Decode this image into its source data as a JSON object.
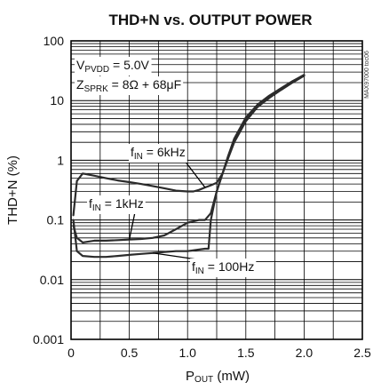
{
  "chart_data": {
    "type": "line",
    "title": "THD+N vs. OUTPUT POWER",
    "xlabel": {
      "main": "P",
      "sub": "OUT",
      "unit": " (mW)"
    },
    "ylabel": "THD+N (%)",
    "xlim": [
      0,
      2.5
    ],
    "ylim": [
      0.001,
      100
    ],
    "yscale": "log",
    "grid": true,
    "x_ticks": [
      "0",
      "0.5",
      "1.0",
      "1.5",
      "2.0",
      "2.5"
    ],
    "y_ticks": [
      "0.001",
      "0.01",
      "0.1",
      "1",
      "10",
      "100"
    ],
    "line_color": "#2b2b2b",
    "side_tag": "MAX97000 toc06",
    "conditions": [
      {
        "main": "V",
        "sub": "PVDD",
        "rest": " = 5.0V"
      },
      {
        "main": "Z",
        "sub": "SPRK",
        "rest": " = 8Ω + 68μF"
      }
    ],
    "series": [
      {
        "name": "fIN = 6kHz",
        "label": {
          "main": "f",
          "sub": "IN",
          "rest": " = 6kHz"
        },
        "x": [
          0.02,
          0.05,
          0.1,
          0.2,
          0.3,
          0.4,
          0.5,
          0.6,
          0.7,
          0.8,
          0.9,
          1.0,
          1.05,
          1.1,
          1.15,
          1.2,
          1.25,
          1.3,
          1.35,
          1.4,
          1.5,
          1.6,
          1.7,
          1.8,
          1.9,
          2.0
        ],
        "y": [
          0.12,
          0.45,
          0.6,
          0.55,
          0.5,
          0.46,
          0.43,
          0.4,
          0.37,
          0.34,
          0.31,
          0.3,
          0.3,
          0.32,
          0.35,
          0.38,
          0.42,
          0.6,
          1.2,
          2.2,
          5.0,
          8.5,
          12.0,
          16.0,
          21.0,
          27.0
        ]
      },
      {
        "name": "fIN = 1kHz",
        "label": {
          "main": "f",
          "sub": "IN",
          "rest": " = 1kHz"
        },
        "x": [
          0.02,
          0.05,
          0.1,
          0.2,
          0.3,
          0.4,
          0.5,
          0.6,
          0.7,
          0.8,
          0.9,
          1.0,
          1.1,
          1.15,
          1.2,
          1.25,
          1.3,
          1.35,
          1.4,
          1.5,
          1.6,
          1.7,
          1.8,
          1.9,
          2.0
        ],
        "y": [
          0.08,
          0.05,
          0.042,
          0.045,
          0.045,
          0.046,
          0.047,
          0.048,
          0.05,
          0.055,
          0.07,
          0.09,
          0.1,
          0.1,
          0.13,
          0.3,
          0.6,
          1.1,
          2.0,
          4.5,
          7.8,
          11.0,
          15.0,
          20.0,
          26.0
        ]
      },
      {
        "name": "fIN = 100Hz",
        "label": {
          "main": "f",
          "sub": "IN",
          "rest": " = 100Hz"
        },
        "x": [
          0.02,
          0.05,
          0.1,
          0.2,
          0.3,
          0.4,
          0.5,
          0.6,
          0.7,
          0.8,
          0.9,
          1.0,
          1.1,
          1.15,
          1.18,
          1.2,
          1.25,
          1.3,
          1.35,
          1.4,
          1.5,
          1.6,
          1.7,
          1.8,
          1.9,
          2.0
        ],
        "y": [
          0.1,
          0.03,
          0.025,
          0.024,
          0.024,
          0.025,
          0.026,
          0.027,
          0.028,
          0.029,
          0.03,
          0.03,
          0.032,
          0.033,
          0.033,
          0.1,
          0.3,
          0.6,
          1.2,
          2.3,
          5.2,
          8.5,
          12.0,
          16.0,
          21.0,
          26.0
        ]
      }
    ]
  }
}
